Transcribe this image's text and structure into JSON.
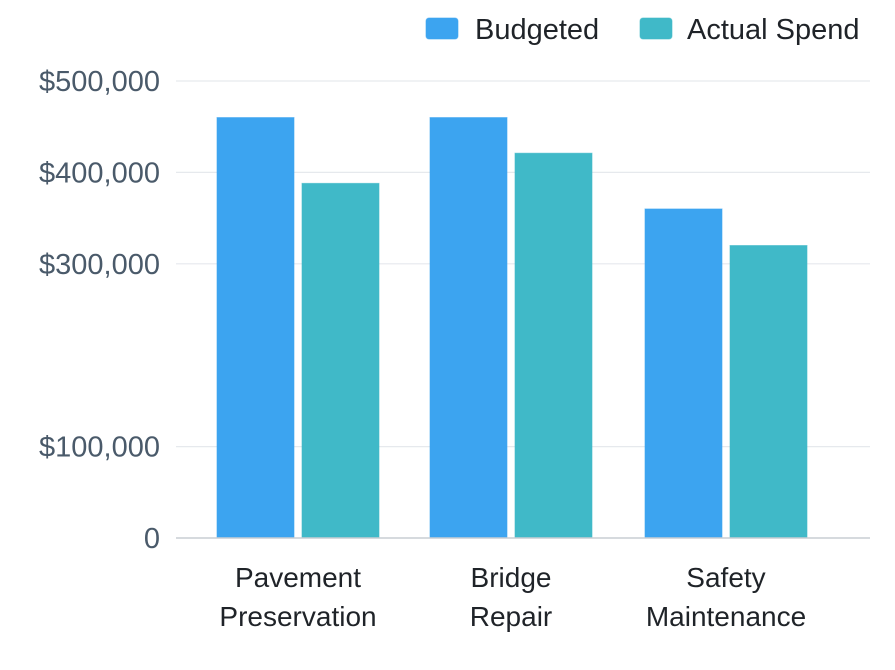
{
  "chart_data": {
    "type": "bar",
    "categories": [
      [
        "Pavement",
        "Preservation"
      ],
      [
        "Bridge",
        "Repair"
      ],
      [
        "Safety",
        "Maintenance"
      ]
    ],
    "series": [
      {
        "name": "Budgeted",
        "color": "#3ca4f0",
        "values": [
          460000,
          460000,
          360000
        ]
      },
      {
        "name": "Actual Spend",
        "color": "#40b9c8",
        "values": [
          388000,
          421000,
          320000
        ]
      }
    ],
    "y_ticks": [
      {
        "label": "0",
        "value": 0
      },
      {
        "label": "$100,000",
        "value": 100000
      },
      {
        "label": "$300,000",
        "value": 300000
      },
      {
        "label": "$400,000",
        "value": 400000
      },
      {
        "label": "$500,000",
        "value": 500000
      }
    ],
    "title": "",
    "xlabel": "",
    "ylabel": "",
    "grid": true,
    "legend": "top-right"
  }
}
